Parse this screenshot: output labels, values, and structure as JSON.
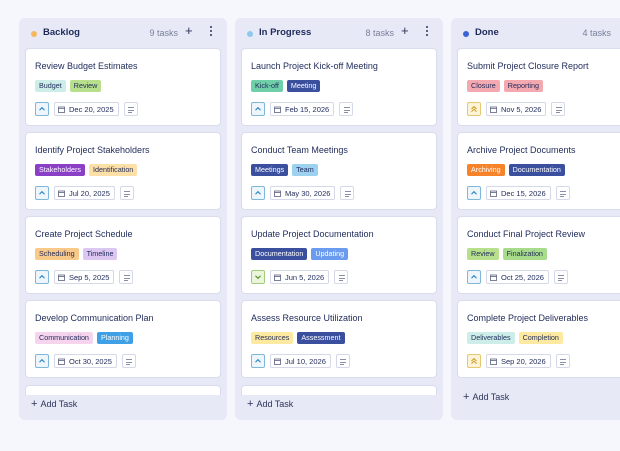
{
  "columns": [
    {
      "title": "Backlog",
      "count": "9 tasks",
      "dot_color": "#f4b860",
      "add_label": "Add Task",
      "cards": [
        {
          "title": "Review Budget Estimates",
          "tags": [
            {
              "label": "Budget",
              "bg": "#cdeee8",
              "fg": "#1e2a5a"
            },
            {
              "label": "Review",
              "bg": "#b8e08c",
              "fg": "#1e2a5a"
            }
          ],
          "priority": "medium",
          "priority_icon": "chevron-up-icon",
          "date": "Dec 20, 2025"
        },
        {
          "title": "Identify Project Stakeholders",
          "tags": [
            {
              "label": "Stakeholders",
              "bg": "#8a3fc6",
              "fg": "#ffffff"
            },
            {
              "label": "Identification",
              "bg": "#fde0a8",
              "fg": "#1e2a5a"
            }
          ],
          "priority": "medium",
          "priority_icon": "chevron-up-icon",
          "date": "Jul 20, 2025"
        },
        {
          "title": "Create Project Schedule",
          "tags": [
            {
              "label": "Scheduling",
              "bg": "#f9c98a",
              "fg": "#1e2a5a"
            },
            {
              "label": "Timeline",
              "bg": "#dcc6f2",
              "fg": "#1e2a5a"
            }
          ],
          "priority": "medium",
          "priority_icon": "chevron-up-icon",
          "date": "Sep 5, 2025"
        },
        {
          "title": "Develop Communication Plan",
          "tags": [
            {
              "label": "Communication",
              "bg": "#f6d4ee",
              "fg": "#1e2a5a"
            },
            {
              "label": "Planning",
              "bg": "#3fa0e6",
              "fg": "#ffffff"
            }
          ],
          "priority": "medium",
          "priority_icon": "chevron-up-icon",
          "date": "Oct 30, 2025"
        }
      ]
    },
    {
      "title": "In Progress",
      "count": "8 tasks",
      "dot_color": "#8cc8f0",
      "add_label": "Add Task",
      "cards": [
        {
          "title": "Launch Project Kick-off Meeting",
          "tags": [
            {
              "label": "Kick-off",
              "bg": "#6fcfa8",
              "fg": "#1e2a5a"
            },
            {
              "label": "Meeting",
              "bg": "#3a4f9e",
              "fg": "#ffffff"
            }
          ],
          "priority": "medium",
          "priority_icon": "chevron-up-icon",
          "date": "Feb 15, 2026"
        },
        {
          "title": "Conduct Team Meetings",
          "tags": [
            {
              "label": "Meetings",
              "bg": "#3a4f9e",
              "fg": "#ffffff"
            },
            {
              "label": "Team",
              "bg": "#9cd2f0",
              "fg": "#1e2a5a"
            }
          ],
          "priority": "medium",
          "priority_icon": "chevron-up-icon",
          "date": "May 30, 2026"
        },
        {
          "title": "Update Project Documentation",
          "tags": [
            {
              "label": "Documentation",
              "bg": "#3a4f9e",
              "fg": "#ffffff"
            },
            {
              "label": "Updating",
              "bg": "#6a9bef",
              "fg": "#ffffff"
            }
          ],
          "priority": "low",
          "priority_icon": "chevron-down-icon",
          "date": "Jun 5, 2026"
        },
        {
          "title": "Assess Resource Utilization",
          "tags": [
            {
              "label": "Resources",
              "bg": "#fdeaa0",
              "fg": "#1e2a5a"
            },
            {
              "label": "Assessment",
              "bg": "#3a4f9e",
              "fg": "#ffffff"
            }
          ],
          "priority": "medium",
          "priority_icon": "chevron-up-icon",
          "date": "Jul 10, 2026"
        }
      ]
    },
    {
      "title": "Done",
      "count": "4 tasks",
      "dot_color": "#3a63d6",
      "add_label": "Add Task",
      "cards": [
        {
          "title": "Submit Project Closure Report",
          "tags": [
            {
              "label": "Closure",
              "bg": "#f4a8b0",
              "fg": "#1e2a5a"
            },
            {
              "label": "Reporting",
              "bg": "#f4a8b0",
              "fg": "#1e2a5a"
            }
          ],
          "priority": "high",
          "priority_icon": "double-chevron-up-icon",
          "date": "Nov 5, 2026"
        },
        {
          "title": "Archive Project Documents",
          "tags": [
            {
              "label": "Archiving",
              "bg": "#f6822a",
              "fg": "#ffffff"
            },
            {
              "label": "Documentation",
              "bg": "#3a4f9e",
              "fg": "#ffffff"
            }
          ],
          "priority": "medium",
          "priority_icon": "chevron-up-icon",
          "date": "Dec 15, 2026"
        },
        {
          "title": "Conduct Final Project Review",
          "tags": [
            {
              "label": "Review",
              "bg": "#b8e08c",
              "fg": "#1e2a5a"
            },
            {
              "label": "Finalization",
              "bg": "#a8dc8a",
              "fg": "#1e2a5a"
            }
          ],
          "priority": "medium",
          "priority_icon": "chevron-up-icon",
          "date": "Oct 25, 2026"
        },
        {
          "title": "Complete Project Deliverables",
          "tags": [
            {
              "label": "Deliverables",
              "bg": "#cdeee8",
              "fg": "#1e2a5a"
            },
            {
              "label": "Completion",
              "bg": "#fdeaa0",
              "fg": "#1e2a5a"
            }
          ],
          "priority": "high",
          "priority_icon": "double-chevron-up-icon",
          "date": "Sep 20, 2026"
        }
      ]
    }
  ]
}
